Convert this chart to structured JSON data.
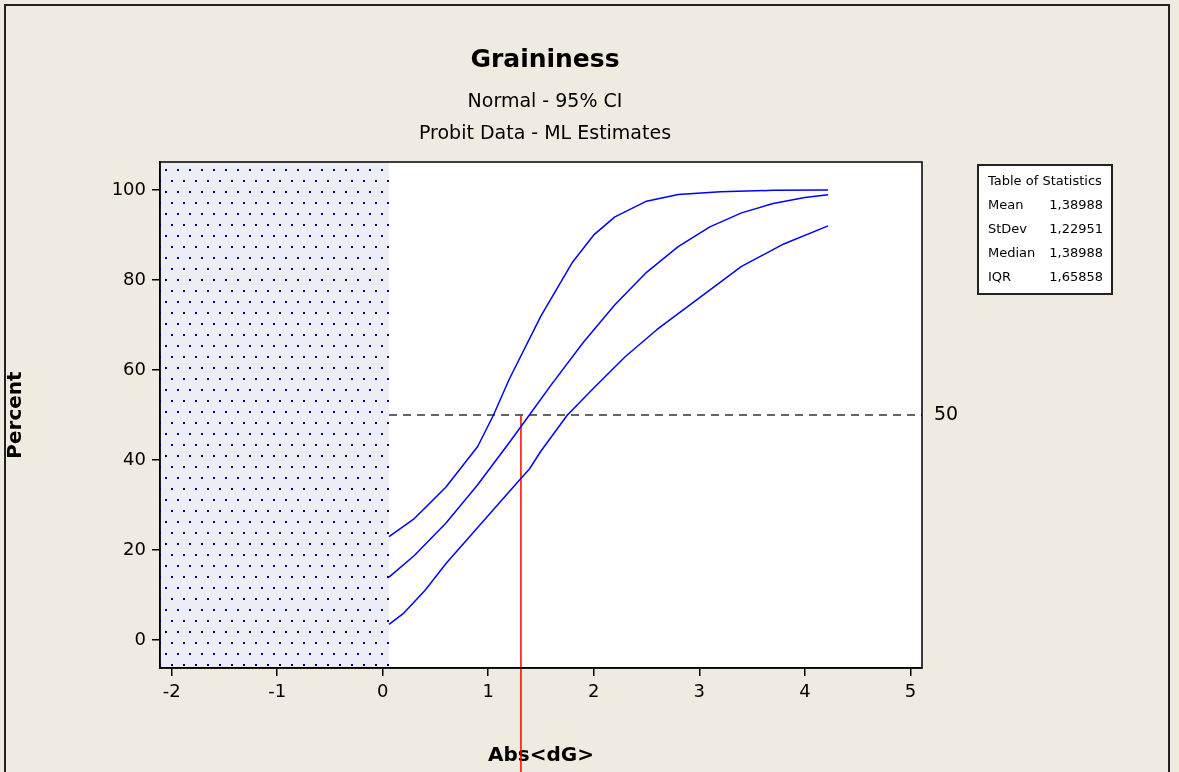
{
  "chart_data": {
    "type": "line",
    "title": "Graininess",
    "subtitle": "Normal - 95% CI\nProbit Data - ML Estimates",
    "xlabel": "Abs<dG>",
    "ylabel": "Percent",
    "xlim": [
      -2.11,
      5.11
    ],
    "xticks": [
      -2,
      -1,
      0,
      1,
      2,
      3,
      4,
      5
    ],
    "ylim": [
      -6.2,
      106.2
    ],
    "yticks": [
      0,
      20,
      40,
      60,
      80,
      100
    ],
    "grid": false,
    "legend": false,
    "marker": "none",
    "line_style": "solid",
    "series": [
      {
        "color": "#0000ff",
        "x": [
          0.06,
          0.3,
          0.6,
          0.9,
          1.05,
          1.2,
          1.5,
          1.8,
          2.0,
          2.2,
          2.5,
          2.8,
          3.2,
          3.7,
          4.22
        ],
        "values": [
          23,
          27,
          34,
          43,
          50,
          58,
          72,
          84,
          90,
          94,
          97.5,
          99,
          99.6,
          99.9,
          100
        ]
      },
      {
        "color": "#0000ff",
        "x": [
          0.06,
          0.3,
          0.6,
          0.9,
          1.2,
          1.39,
          1.6,
          1.9,
          2.2,
          2.5,
          2.8,
          3.1,
          3.4,
          3.7,
          4.0,
          4.22
        ],
        "values": [
          14,
          18.8,
          26,
          34.5,
          43.9,
          50,
          56.8,
          66.1,
          74.5,
          81.7,
          87.4,
          91.8,
          94.9,
          97,
          98.3,
          98.9
        ]
      },
      {
        "color": "#0000ff",
        "x": [
          0.06,
          0.2,
          0.4,
          0.6,
          0.9,
          1.2,
          1.39,
          1.5,
          1.75,
          2.0,
          2.3,
          2.6,
          3.0,
          3.4,
          3.8,
          4.22
        ],
        "values": [
          3.5,
          6,
          11,
          17,
          25,
          33,
          38,
          42,
          50,
          56,
          63,
          69,
          76,
          83,
          88,
          92
        ]
      }
    ],
    "bands": [
      {
        "axis": "x",
        "from": -2.11,
        "to": 0.06,
        "color": "#000080"
      }
    ],
    "ref_lines": [
      {
        "axis": "y",
        "value": 50,
        "label": "50",
        "color": "#333333",
        "line_style": "dashed"
      },
      {
        "axis": "x",
        "value": 1.31,
        "color": "#ff0000",
        "line_style": "solid"
      }
    ],
    "annotations": [
      "Table of Statistics",
      "Mean",
      "1,38988",
      "StDev",
      "1,22951",
      "Median",
      "1,38988",
      "IQR",
      "1,65858"
    ]
  }
}
